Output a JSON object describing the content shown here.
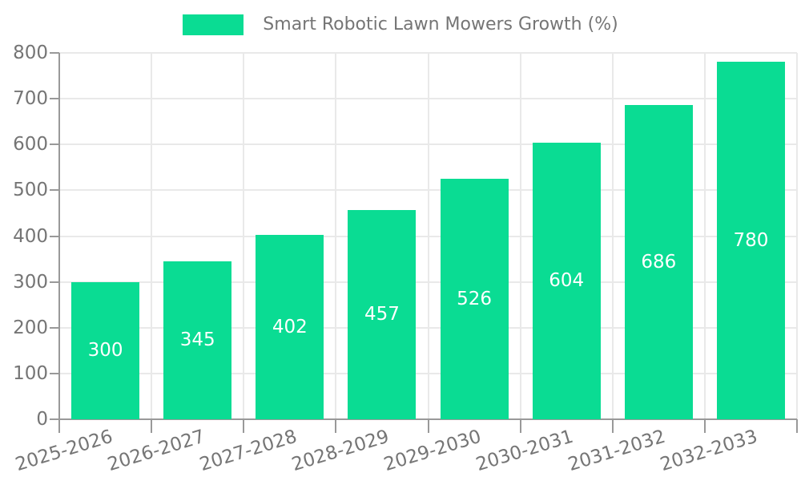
{
  "chart_data": {
    "type": "bar",
    "title": "Smart Robotic Lawn Mowers Growth (%)",
    "series_name": "Smart Robotic Lawn Mowers Growth (%)",
    "categories": [
      "2025-2026",
      "2026-2027",
      "2027-2028",
      "2028-2029",
      "2029-2030",
      "2030-2031",
      "2031-2032",
      "2032-2033"
    ],
    "values": [
      300,
      345,
      402,
      457,
      526,
      604,
      686,
      780
    ],
    "xlabel": "",
    "ylabel": "",
    "ylim": [
      0,
      800
    ],
    "ytick_interval": 100,
    "yticks": [
      0,
      100,
      200,
      300,
      400,
      500,
      600,
      700,
      800
    ],
    "grid": true,
    "legend_position": "top-center",
    "colors": {
      "bar": "#0ADC93",
      "value_label": "#FFFFFF",
      "axis": "#999999",
      "grid": "#E9E9E9",
      "tick_label": "#757575",
      "legend_text": "#757575",
      "background": "#FFFFFF"
    }
  }
}
